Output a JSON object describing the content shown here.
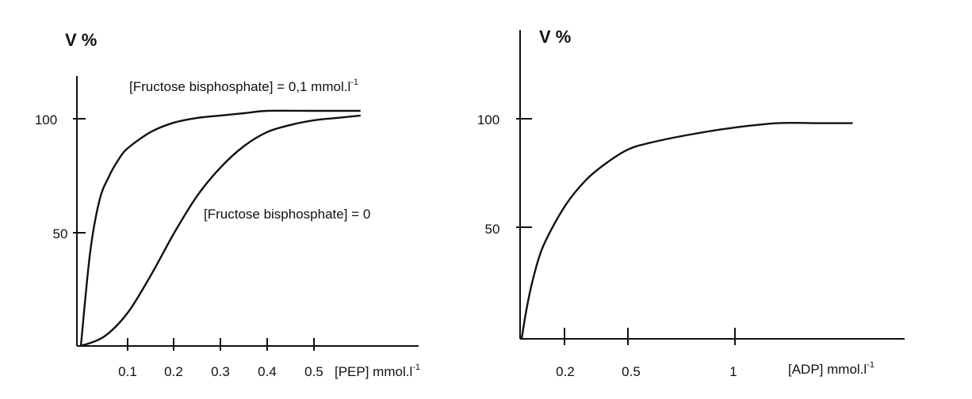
{
  "chart_data": [
    {
      "type": "line",
      "ylabel": "V %",
      "xlabel": "[PEP] mmol.l",
      "xlabel_sup": "-1",
      "x_ticks": [
        "0.1",
        "0.2",
        "0.3",
        "0.4",
        "0.5"
      ],
      "y_ticks": [
        "50",
        "100"
      ],
      "xlim": [
        0,
        0.6
      ],
      "ylim": [
        0,
        100
      ],
      "series": [
        {
          "name": "[Fructose bisphosphate] = 0,1 mmol.l",
          "name_sup": "-1",
          "x": [
            0,
            0.02,
            0.04,
            0.06,
            0.08,
            0.1,
            0.15,
            0.2,
            0.25,
            0.3,
            0.35,
            0.4,
            0.5,
            0.6
          ],
          "y": [
            0,
            40,
            62,
            72,
            79,
            84,
            91,
            95,
            97,
            98,
            99,
            100,
            100,
            100
          ]
        },
        {
          "name": "[Fructose bisphosphate] = 0",
          "x": [
            0,
            0.05,
            0.1,
            0.15,
            0.2,
            0.25,
            0.3,
            0.35,
            0.4,
            0.45,
            0.5,
            0.55,
            0.6
          ],
          "y": [
            0,
            4,
            14,
            30,
            48,
            64,
            76,
            85,
            91,
            94,
            96,
            97,
            98
          ]
        }
      ]
    },
    {
      "type": "line",
      "ylabel": "V %",
      "xlabel": "[ADP] mmol.l",
      "xlabel_sup": "-1",
      "x_ticks": [
        "0.2",
        "0.5",
        "1"
      ],
      "y_ticks": [
        "50",
        "100"
      ],
      "xlim": [
        0,
        1.6
      ],
      "ylim": [
        0,
        100
      ],
      "series": [
        {
          "x": [
            0,
            0.02,
            0.05,
            0.1,
            0.2,
            0.3,
            0.4,
            0.5,
            0.6,
            0.8,
            1.0,
            1.2,
            1.4,
            1.55
          ],
          "y": [
            0,
            12,
            26,
            42,
            60,
            72,
            80,
            86,
            89,
            93,
            96,
            98,
            98,
            98
          ]
        }
      ]
    }
  ]
}
